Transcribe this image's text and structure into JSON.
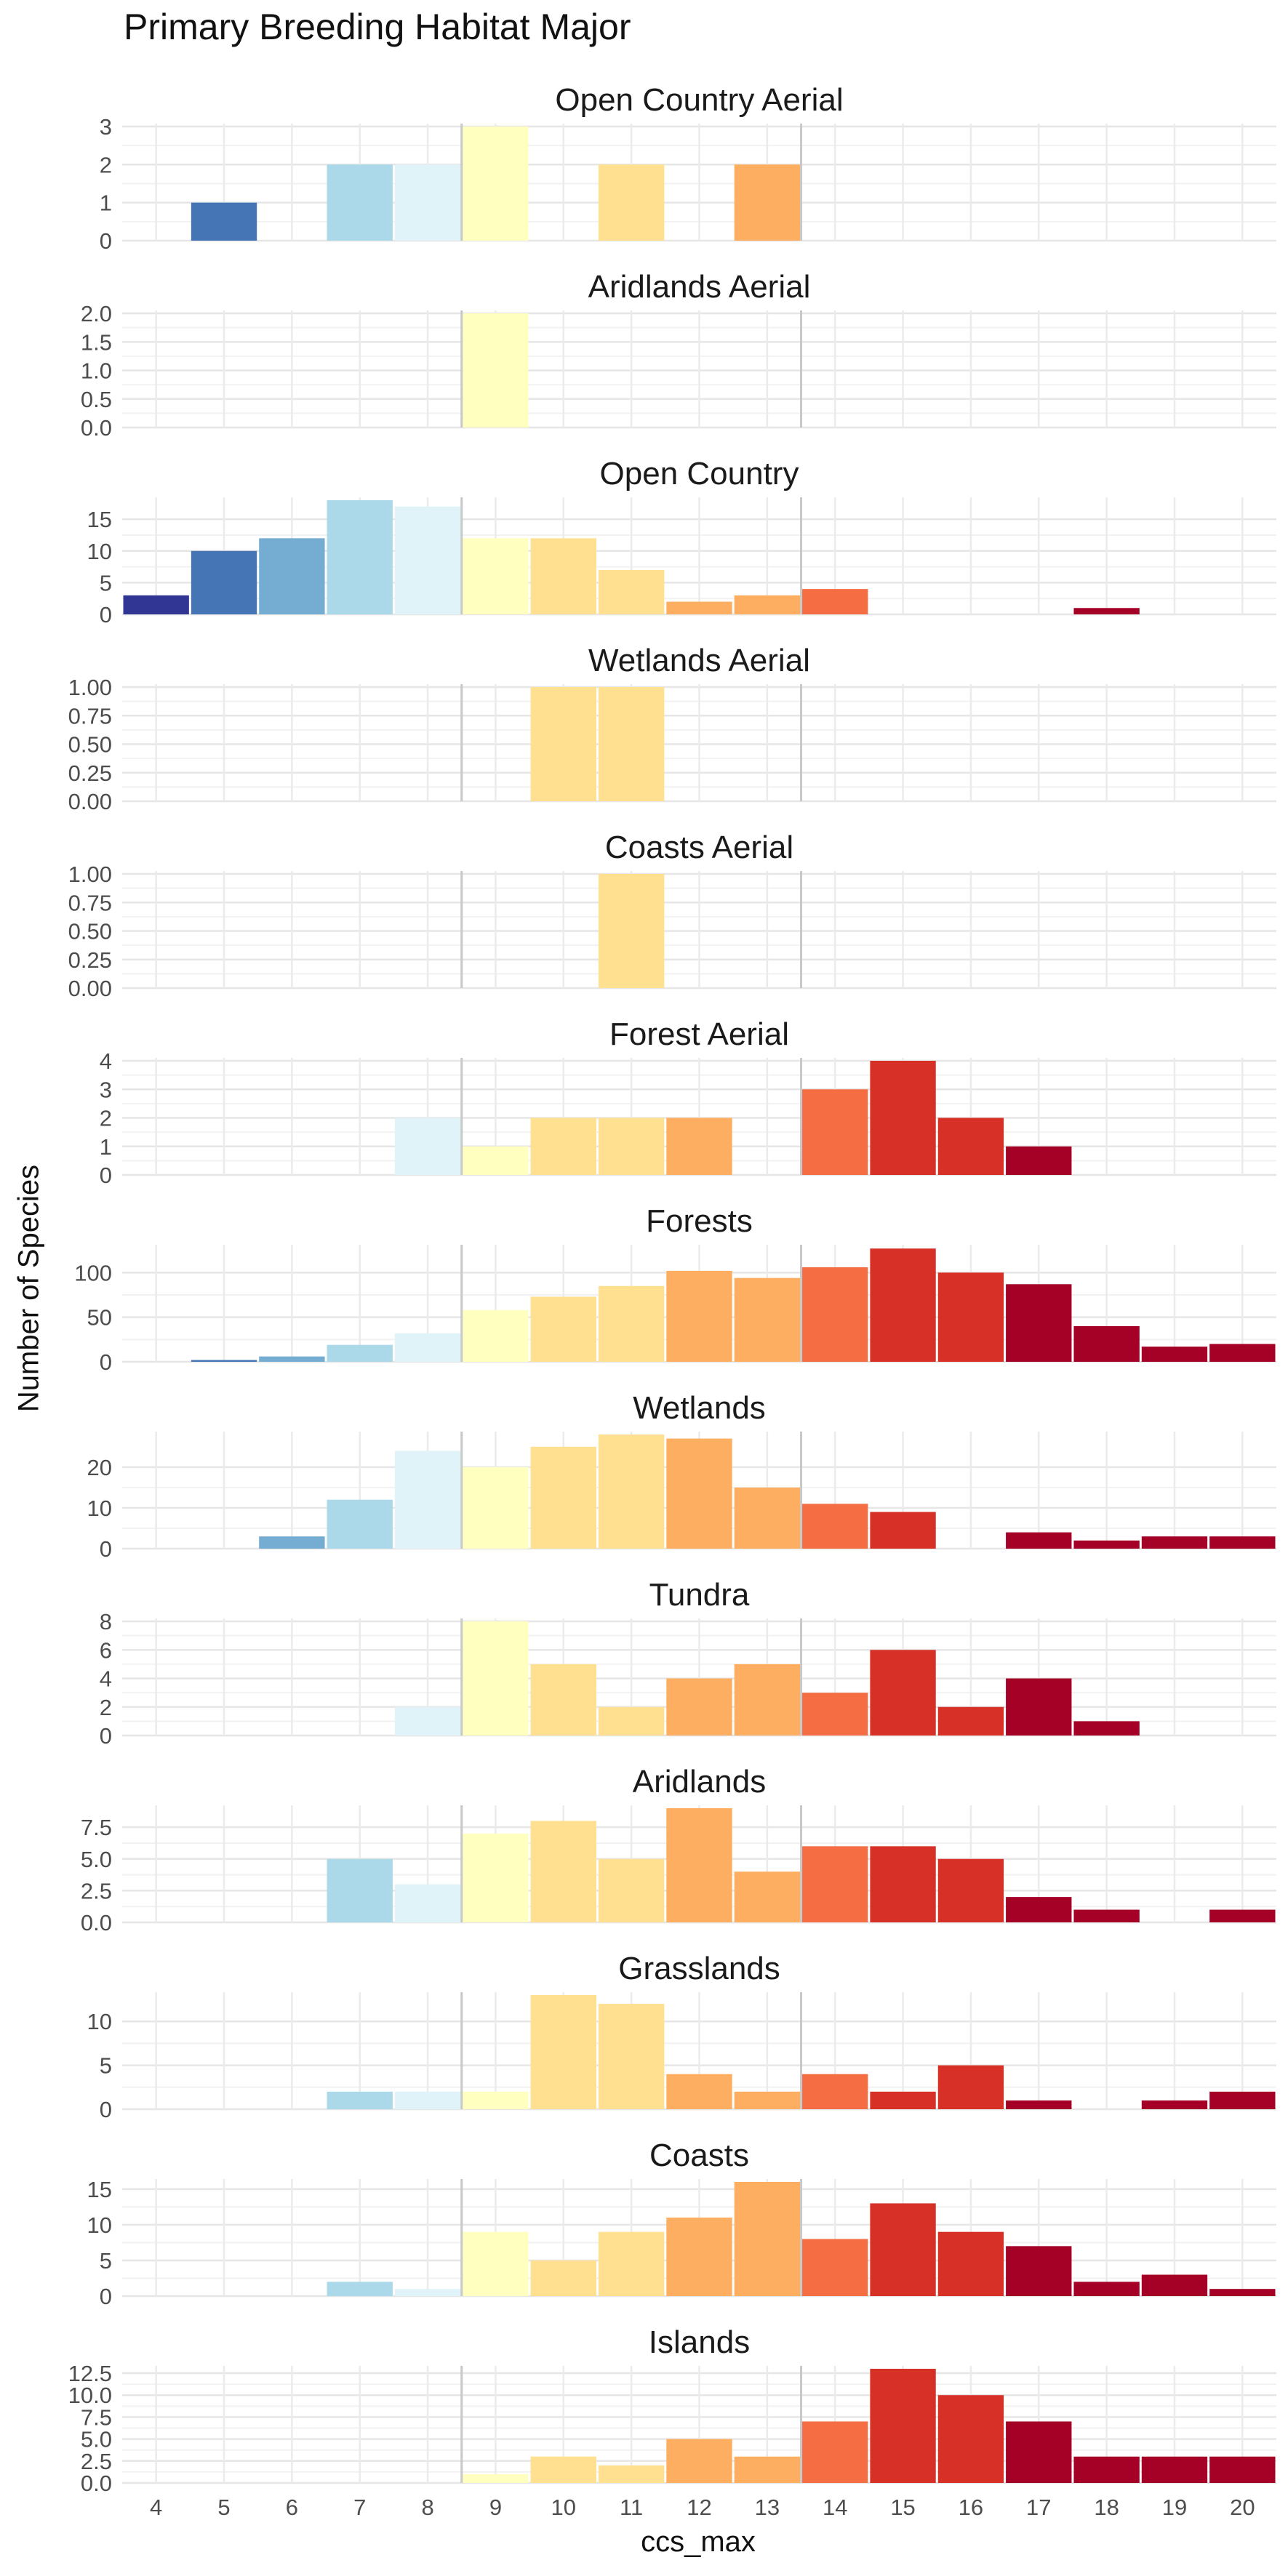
{
  "chart_data": {
    "type": "bar",
    "title": "Primary Breeding Habitat Major",
    "xlabel": "ccs_max",
    "ylabel": "Number of Species",
    "x_categories": [
      4,
      5,
      6,
      7,
      8,
      9,
      10,
      11,
      12,
      13,
      14,
      15,
      16,
      17,
      18,
      19,
      20
    ],
    "reference_lines_x": [
      8.5,
      13.5
    ],
    "grid": true,
    "legend": "none",
    "colors": {
      "4": "#313695",
      "5": "#4575b4",
      "6": "#74add1",
      "7": "#abd9e9",
      "8": "#e0f3f8",
      "9": "#ffffbf",
      "10": "#fee090",
      "11": "#fee090",
      "12": "#fdae61",
      "13": "#fdae61",
      "14": "#f46d43",
      "15": "#d73027",
      "16": "#d73027",
      "17": "#a50026",
      "18": "#a50026",
      "19": "#a50026",
      "20": "#a50026"
    },
    "facets": [
      {
        "name": "Open Country Aerial",
        "ylim": [
          0,
          3
        ],
        "yticks": [
          0,
          1,
          2,
          3
        ],
        "yticklabels": [
          "0",
          "1",
          "2",
          "3"
        ],
        "bars": [
          [
            5,
            1
          ],
          [
            7,
            2
          ],
          [
            8,
            2
          ],
          [
            9,
            3
          ],
          [
            11,
            2
          ],
          [
            13,
            2
          ]
        ]
      },
      {
        "name": "Aridlands Aerial",
        "ylim": [
          0,
          2
        ],
        "yticks": [
          0,
          0.5,
          1,
          1.5,
          2
        ],
        "yticklabels": [
          "0.0",
          "0.5",
          "1.0",
          "1.5",
          "2.0"
        ],
        "bars": [
          [
            9,
            2
          ]
        ]
      },
      {
        "name": "Open Country",
        "ylim": [
          0,
          18
        ],
        "yticks": [
          0,
          5,
          10,
          15
        ],
        "yticklabels": [
          "0",
          "5",
          "10",
          "15"
        ],
        "bars": [
          [
            4,
            3
          ],
          [
            5,
            10
          ],
          [
            6,
            12
          ],
          [
            7,
            18
          ],
          [
            8,
            17
          ],
          [
            9,
            12
          ],
          [
            10,
            12
          ],
          [
            11,
            7
          ],
          [
            12,
            2
          ],
          [
            13,
            3
          ],
          [
            14,
            4
          ],
          [
            18,
            1
          ]
        ]
      },
      {
        "name": "Wetlands Aerial",
        "ylim": [
          0,
          1
        ],
        "yticks": [
          0,
          0.25,
          0.5,
          0.75,
          1
        ],
        "yticklabels": [
          "0.00",
          "0.25",
          "0.50",
          "0.75",
          "1.00"
        ],
        "bars": [
          [
            10,
            1
          ],
          [
            11,
            1
          ]
        ]
      },
      {
        "name": "Coasts Aerial",
        "ylim": [
          0,
          1
        ],
        "yticks": [
          0,
          0.25,
          0.5,
          0.75,
          1
        ],
        "yticklabels": [
          "0.00",
          "0.25",
          "0.50",
          "0.75",
          "1.00"
        ],
        "bars": [
          [
            11,
            1
          ]
        ]
      },
      {
        "name": "Forest Aerial",
        "ylim": [
          0,
          4
        ],
        "yticks": [
          0,
          1,
          2,
          3,
          4
        ],
        "yticklabels": [
          "0",
          "1",
          "2",
          "3",
          "4"
        ],
        "bars": [
          [
            8,
            2
          ],
          [
            9,
            1
          ],
          [
            10,
            2
          ],
          [
            11,
            2
          ],
          [
            12,
            2
          ],
          [
            14,
            3
          ],
          [
            15,
            4
          ],
          [
            16,
            2
          ],
          [
            17,
            1
          ]
        ]
      },
      {
        "name": "Forests",
        "ylim": [
          0,
          128
        ],
        "yticks": [
          0,
          50,
          100
        ],
        "yticklabels": [
          "0",
          "50",
          "100"
        ],
        "bars": [
          [
            5,
            2
          ],
          [
            6,
            6
          ],
          [
            7,
            19
          ],
          [
            8,
            32
          ],
          [
            9,
            58
          ],
          [
            10,
            73
          ],
          [
            11,
            85
          ],
          [
            12,
            102
          ],
          [
            13,
            94
          ],
          [
            14,
            106
          ],
          [
            15,
            127
          ],
          [
            16,
            100
          ],
          [
            17,
            87
          ],
          [
            18,
            40
          ],
          [
            19,
            17
          ],
          [
            20,
            20
          ]
        ]
      },
      {
        "name": "Wetlands",
        "ylim": [
          0,
          28
        ],
        "yticks": [
          0,
          10,
          20
        ],
        "yticklabels": [
          "0",
          "10",
          "20"
        ],
        "bars": [
          [
            6,
            3
          ],
          [
            7,
            12
          ],
          [
            8,
            24
          ],
          [
            9,
            20
          ],
          [
            10,
            25
          ],
          [
            11,
            28
          ],
          [
            12,
            27
          ],
          [
            13,
            15
          ],
          [
            14,
            11
          ],
          [
            15,
            9
          ],
          [
            17,
            4
          ],
          [
            18,
            2
          ],
          [
            19,
            3
          ],
          [
            20,
            3
          ]
        ]
      },
      {
        "name": "Tundra",
        "ylim": [
          0,
          8
        ],
        "yticks": [
          0,
          2,
          4,
          6,
          8
        ],
        "yticklabels": [
          "0",
          "2",
          "4",
          "6",
          "8"
        ],
        "bars": [
          [
            8,
            2
          ],
          [
            9,
            8
          ],
          [
            10,
            5
          ],
          [
            11,
            2
          ],
          [
            12,
            4
          ],
          [
            13,
            5
          ],
          [
            14,
            3
          ],
          [
            15,
            6
          ],
          [
            16,
            2
          ],
          [
            17,
            4
          ],
          [
            18,
            1
          ]
        ]
      },
      {
        "name": "Aridlands",
        "ylim": [
          0,
          9
        ],
        "yticks": [
          0,
          2.5,
          5,
          7.5
        ],
        "yticklabels": [
          "0.0",
          "2.5",
          "5.0",
          "7.5"
        ],
        "bars": [
          [
            7,
            5
          ],
          [
            8,
            3
          ],
          [
            9,
            7
          ],
          [
            10,
            8
          ],
          [
            11,
            5
          ],
          [
            12,
            9
          ],
          [
            13,
            4
          ],
          [
            14,
            6
          ],
          [
            15,
            6
          ],
          [
            16,
            5
          ],
          [
            17,
            2
          ],
          [
            18,
            1
          ],
          [
            20,
            1
          ]
        ]
      },
      {
        "name": "Grasslands",
        "ylim": [
          0,
          13
        ],
        "yticks": [
          0,
          5,
          10
        ],
        "yticklabels": [
          "0",
          "5",
          "10"
        ],
        "bars": [
          [
            7,
            2
          ],
          [
            8,
            2
          ],
          [
            9,
            2
          ],
          [
            10,
            13
          ],
          [
            11,
            12
          ],
          [
            12,
            4
          ],
          [
            13,
            2
          ],
          [
            14,
            4
          ],
          [
            15,
            2
          ],
          [
            16,
            5
          ],
          [
            17,
            1
          ],
          [
            19,
            1
          ],
          [
            20,
            2
          ]
        ]
      },
      {
        "name": "Coasts",
        "ylim": [
          0,
          16
        ],
        "yticks": [
          0,
          5,
          10,
          15
        ],
        "yticklabels": [
          "0",
          "5",
          "10",
          "15"
        ],
        "bars": [
          [
            7,
            2
          ],
          [
            8,
            1
          ],
          [
            9,
            9
          ],
          [
            10,
            5
          ],
          [
            11,
            9
          ],
          [
            12,
            11
          ],
          [
            13,
            16
          ],
          [
            14,
            8
          ],
          [
            15,
            13
          ],
          [
            16,
            9
          ],
          [
            17,
            7
          ],
          [
            18,
            2
          ],
          [
            19,
            3
          ],
          [
            20,
            1
          ]
        ]
      },
      {
        "name": "Islands",
        "ylim": [
          0,
          13
        ],
        "yticks": [
          0,
          2.5,
          5,
          7.5,
          10,
          12.5
        ],
        "yticklabels": [
          "0.0",
          "2.5",
          "5.0",
          "7.5",
          "10.0",
          "12.5"
        ],
        "bars": [
          [
            9,
            1
          ],
          [
            10,
            3
          ],
          [
            11,
            2
          ],
          [
            12,
            5
          ],
          [
            13,
            3
          ],
          [
            14,
            7
          ],
          [
            15,
            13
          ],
          [
            16,
            10
          ],
          [
            17,
            7
          ],
          [
            18,
            3
          ],
          [
            19,
            3
          ],
          [
            20,
            3
          ]
        ]
      }
    ]
  }
}
